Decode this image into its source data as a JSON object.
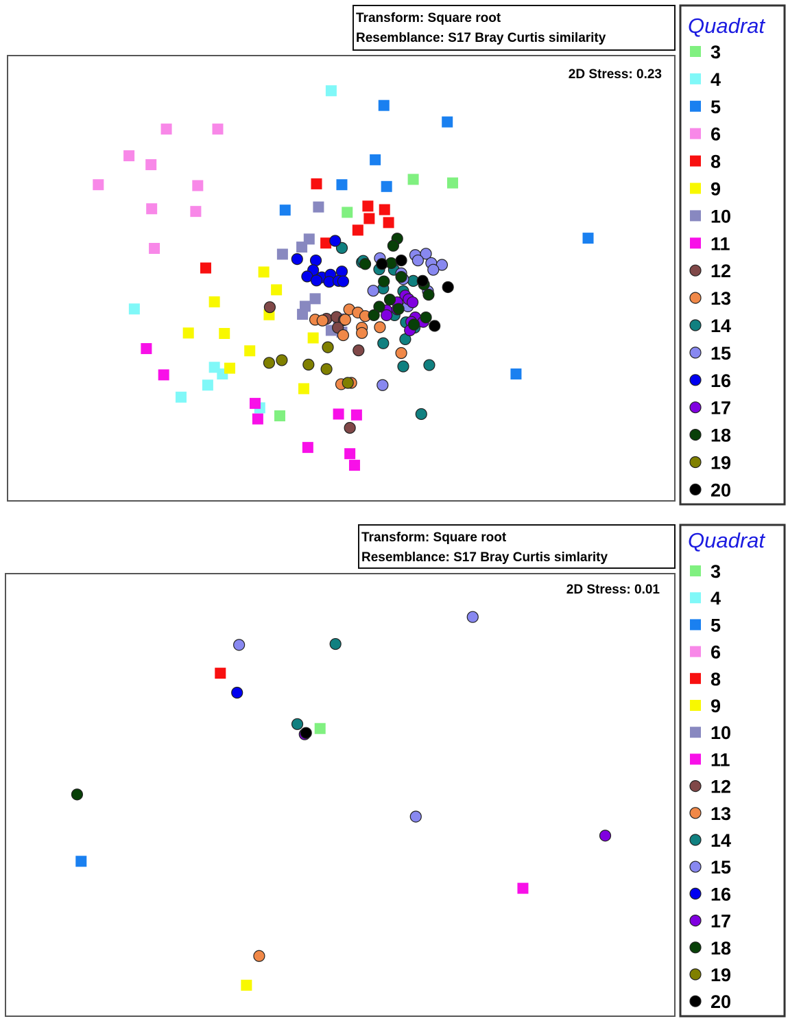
{
  "chart_data": [
    {
      "type": "scatter",
      "title": "",
      "xlabel": "",
      "ylabel": "",
      "info_lines": [
        "Transform: Square root",
        "Resemblance: S17 Bray Curtis similarity"
      ],
      "stress_label": "2D Stress: 0.23",
      "legend_title": "Quadrat",
      "legend": [
        {
          "label": "3",
          "shape": "square",
          "color": "#80f080"
        },
        {
          "label": "4",
          "shape": "square",
          "color": "#80f8f8"
        },
        {
          "label": "5",
          "shape": "square",
          "color": "#1a80f0"
        },
        {
          "label": "6",
          "shape": "square",
          "color": "#f888e8"
        },
        {
          "label": "8",
          "shape": "square",
          "color": "#f81010"
        },
        {
          "label": "9",
          "shape": "square",
          "color": "#f8f800"
        },
        {
          "label": "10",
          "shape": "square",
          "color": "#8888c0"
        },
        {
          "label": "11",
          "shape": "square",
          "color": "#f810e8"
        },
        {
          "label": "12",
          "shape": "circle",
          "color": "#804848"
        },
        {
          "label": "13",
          "shape": "circle",
          "color": "#f08848"
        },
        {
          "label": "14",
          "shape": "circle",
          "color": "#108080"
        },
        {
          "label": "15",
          "shape": "circle",
          "color": "#8888f0"
        },
        {
          "label": "16",
          "shape": "circle",
          "color": "#0000f0"
        },
        {
          "label": "17",
          "shape": "circle",
          "color": "#8000e0"
        },
        {
          "label": "18",
          "shape": "circle",
          "color": "#084008"
        },
        {
          "label": "19",
          "shape": "circle",
          "color": "#808000"
        },
        {
          "label": "20",
          "shape": "circle",
          "color": "#000000"
        }
      ],
      "xlim": [
        0,
        100
      ],
      "ylim": [
        0,
        100
      ],
      "series": [
        {
          "name": "3",
          "points": [
            [
              60.8,
              72.2
            ],
            [
              66.7,
              71.4
            ],
            [
              50.9,
              64.8
            ],
            [
              40.8,
              19.1
            ]
          ]
        },
        {
          "name": "4",
          "points": [
            [
              48.5,
              92.1
            ],
            [
              19.0,
              43.1
            ],
            [
              31.0,
              30.0
            ],
            [
              32.2,
              28.5
            ],
            [
              30.0,
              26.0
            ],
            [
              26.0,
              23.3
            ],
            [
              37.8,
              20.9
            ]
          ]
        },
        {
          "name": "5",
          "points": [
            [
              56.4,
              88.8
            ],
            [
              65.9,
              85.1
            ],
            [
              55.1,
              76.6
            ],
            [
              50.1,
              71.0
            ],
            [
              56.8,
              70.6
            ],
            [
              41.6,
              65.3
            ],
            [
              87.0,
              59.0
            ],
            [
              76.2,
              28.5
            ]
          ]
        },
        {
          "name": "6",
          "points": [
            [
              23.8,
              83.5
            ],
            [
              31.5,
              83.5
            ],
            [
              18.2,
              77.5
            ],
            [
              21.5,
              75.5
            ],
            [
              13.6,
              71.0
            ],
            [
              28.5,
              70.8
            ],
            [
              21.6,
              65.6
            ],
            [
              28.2,
              65.0
            ],
            [
              22.0,
              56.7
            ]
          ]
        },
        {
          "name": "8",
          "points": [
            [
              46.3,
              71.2
            ],
            [
              54.0,
              66.2
            ],
            [
              56.5,
              65.4
            ],
            [
              54.2,
              63.4
            ],
            [
              57.1,
              62.5
            ],
            [
              52.5,
              60.8
            ],
            [
              47.7,
              57.9
            ],
            [
              29.7,
              52.3
            ]
          ]
        },
        {
          "name": "9",
          "points": [
            [
              38.4,
              51.4
            ],
            [
              40.3,
              47.4
            ],
            [
              31.0,
              44.7
            ],
            [
              39.2,
              41.8
            ],
            [
              27.1,
              37.7
            ],
            [
              32.5,
              37.6
            ],
            [
              45.8,
              36.6
            ],
            [
              36.3,
              33.7
            ],
            [
              33.3,
              29.8
            ],
            [
              44.4,
              25.2
            ]
          ]
        },
        {
          "name": "10",
          "points": [
            [
              46.6,
              66.0
            ],
            [
              45.2,
              58.8
            ],
            [
              44.1,
              57.0
            ],
            [
              41.2,
              55.4
            ],
            [
              46.1,
              45.4
            ],
            [
              44.6,
              43.7
            ],
            [
              44.2,
              41.9
            ],
            [
              49.6,
              40.9
            ],
            [
              48.5,
              38.3
            ],
            [
              50.1,
              37.9
            ]
          ]
        },
        {
          "name": "11",
          "points": [
            [
              20.8,
              34.2
            ],
            [
              23.4,
              28.3
            ],
            [
              37.1,
              21.9
            ],
            [
              37.5,
              18.4
            ],
            [
              49.6,
              19.5
            ],
            [
              52.3,
              19.3
            ],
            [
              45.0,
              12.0
            ],
            [
              51.3,
              10.6
            ],
            [
              52.0,
              8.0
            ]
          ]
        },
        {
          "name": "12",
          "points": [
            [
              39.3,
              43.5
            ],
            [
              47.8,
              40.9
            ],
            [
              49.3,
              41.3
            ],
            [
              50.4,
              40.6
            ],
            [
              49.5,
              38.9
            ],
            [
              52.6,
              33.8
            ],
            [
              51.3,
              16.4
            ]
          ]
        },
        {
          "name": "13",
          "points": [
            [
              51.2,
              43.0
            ],
            [
              52.5,
              42.3
            ],
            [
              53.6,
              41.5
            ],
            [
              46.1,
              40.7
            ],
            [
              47.2,
              40.5
            ],
            [
              50.6,
              40.7
            ],
            [
              53.1,
              38.9
            ],
            [
              55.8,
              39.0
            ],
            [
              53.1,
              37.7
            ],
            [
              50.3,
              37.2
            ],
            [
              59.0,
              33.2
            ],
            [
              50.0,
              26.2
            ],
            [
              51.5,
              26.5
            ]
          ]
        },
        {
          "name": "14",
          "points": [
            [
              50.1,
              56.8
            ],
            [
              53.1,
              53.6
            ],
            [
              55.7,
              52.0
            ],
            [
              53.3,
              53.9
            ],
            [
              60.8,
              49.4
            ],
            [
              57.9,
              51.9
            ],
            [
              56.3,
              47.7
            ],
            [
              59.3,
              47.1
            ],
            [
              58.0,
              41.7
            ],
            [
              59.7,
              40.1
            ],
            [
              61.0,
              38.9
            ],
            [
              59.6,
              36.3
            ],
            [
              56.3,
              35.4
            ],
            [
              59.3,
              30.2
            ],
            [
              63.2,
              30.5
            ],
            [
              62.0,
              19.5
            ]
          ]
        },
        {
          "name": "15",
          "points": [
            [
              55.8,
              54.5
            ],
            [
              61.1,
              55.2
            ],
            [
              62.7,
              55.5
            ],
            [
              61.5,
              54.0
            ],
            [
              63.5,
              53.4
            ],
            [
              65.1,
              53.0
            ],
            [
              63.8,
              51.9
            ],
            [
              59.0,
              51.1
            ],
            [
              59.3,
              49.8
            ],
            [
              54.8,
              47.2
            ],
            [
              63.0,
              47.1
            ],
            [
              60.0,
              43.7
            ],
            [
              56.2,
              26.0
            ]
          ]
        },
        {
          "name": "16",
          "points": [
            [
              49.1,
              58.4
            ],
            [
              43.4,
              54.3
            ],
            [
              46.2,
              54.0
            ],
            [
              45.8,
              51.8
            ],
            [
              47.1,
              50.2
            ],
            [
              44.9,
              50.4
            ],
            [
              48.4,
              50.8
            ],
            [
              50.1,
              51.5
            ],
            [
              46.3,
              49.5
            ],
            [
              48.2,
              49.2
            ],
            [
              49.6,
              49.4
            ],
            [
              50.3,
              49.3
            ]
          ]
        },
        {
          "name": "17",
          "points": [
            [
              59.6,
              46.1
            ],
            [
              60.1,
              45.3
            ],
            [
              58.4,
              44.6
            ],
            [
              60.7,
              44.6
            ],
            [
              56.8,
              42.8
            ],
            [
              58.4,
              43.0
            ],
            [
              56.8,
              41.7
            ],
            [
              61.1,
              41.2
            ],
            [
              60.5,
              40.2
            ],
            [
              62.3,
              40.2
            ],
            [
              60.3,
              38.3
            ]
          ]
        },
        {
          "name": "18",
          "points": [
            [
              58.4,
              58.9
            ],
            [
              57.8,
              57.3
            ],
            [
              53.6,
              53.2
            ],
            [
              57.5,
              53.4
            ],
            [
              59.0,
              50.3
            ],
            [
              56.4,
              49.3
            ],
            [
              62.4,
              48.6
            ],
            [
              63.1,
              46.3
            ],
            [
              57.3,
              45.2
            ],
            [
              55.7,
              43.6
            ],
            [
              58.6,
              43.1
            ],
            [
              62.7,
              41.2
            ],
            [
              60.9,
              39.6
            ],
            [
              54.9,
              41.7
            ]
          ]
        },
        {
          "name": "19",
          "points": [
            [
              39.2,
              31.0
            ],
            [
              41.1,
              31.6
            ],
            [
              45.1,
              30.6
            ],
            [
              48.0,
              34.5
            ],
            [
              47.8,
              29.6
            ],
            [
              51.0,
              26.5
            ]
          ]
        },
        {
          "name": "20",
          "points": [
            [
              56.1,
              53.2
            ],
            [
              59.0,
              54.0
            ],
            [
              62.2,
              49.4
            ],
            [
              66.0,
              48.0
            ],
            [
              64.0,
              39.3
            ]
          ]
        }
      ]
    },
    {
      "type": "scatter",
      "title": "",
      "xlabel": "",
      "ylabel": "",
      "info_lines": [
        "Transform: Square root",
        "Resemblance: S17 Bray Curtis simlarity"
      ],
      "stress_label": "2D Stress: 0.01",
      "legend_title": "Quadrat",
      "legend": [
        {
          "label": "3",
          "shape": "square",
          "color": "#80f080"
        },
        {
          "label": "4",
          "shape": "square",
          "color": "#80f8f8"
        },
        {
          "label": "5",
          "shape": "square",
          "color": "#1a80f0"
        },
        {
          "label": "6",
          "shape": "square",
          "color": "#f888e8"
        },
        {
          "label": "8",
          "shape": "square",
          "color": "#f81010"
        },
        {
          "label": "9",
          "shape": "square",
          "color": "#f8f800"
        },
        {
          "label": "10",
          "shape": "square",
          "color": "#8888c0"
        },
        {
          "label": "11",
          "shape": "square",
          "color": "#f810e8"
        },
        {
          "label": "12",
          "shape": "circle",
          "color": "#804848"
        },
        {
          "label": "13",
          "shape": "circle",
          "color": "#f08848"
        },
        {
          "label": "14",
          "shape": "circle",
          "color": "#108080"
        },
        {
          "label": "15",
          "shape": "circle",
          "color": "#8888f0"
        },
        {
          "label": "16",
          "shape": "circle",
          "color": "#0000f0"
        },
        {
          "label": "17",
          "shape": "circle",
          "color": "#8000e0"
        },
        {
          "label": "18",
          "shape": "circle",
          "color": "#084008"
        },
        {
          "label": "19",
          "shape": "circle",
          "color": "#808000"
        },
        {
          "label": "20",
          "shape": "circle",
          "color": "#000000"
        }
      ],
      "xlim": [
        0,
        100
      ],
      "ylim": [
        0,
        100
      ],
      "series": [
        {
          "name": "3",
          "points": [
            [
              47.0,
              65.0
            ]
          ]
        },
        {
          "name": "5",
          "points": [
            [
              11.3,
              35.0
            ]
          ]
        },
        {
          "name": "8",
          "points": [
            [
              32.1,
              77.5
            ]
          ]
        },
        {
          "name": "9",
          "points": [
            [
              36.0,
              7.0
            ]
          ]
        },
        {
          "name": "11",
          "points": [
            [
              77.3,
              28.9
            ]
          ]
        },
        {
          "name": "13",
          "points": [
            [
              37.9,
              13.6
            ]
          ]
        },
        {
          "name": "14",
          "points": [
            [
              49.3,
              84.1
            ],
            [
              43.6,
              66.0
            ]
          ]
        },
        {
          "name": "15",
          "points": [
            [
              69.8,
              90.2
            ],
            [
              34.9,
              83.9
            ],
            [
              61.3,
              45.1
            ]
          ]
        },
        {
          "name": "16",
          "points": [
            [
              34.6,
              73.1
            ]
          ]
        },
        {
          "name": "17",
          "points": [
            [
              89.6,
              40.8
            ],
            [
              44.7,
              63.7
            ]
          ]
        },
        {
          "name": "18",
          "points": [
            [
              10.7,
              50.1
            ]
          ]
        },
        {
          "name": "20",
          "points": [
            [
              44.9,
              64.0
            ]
          ]
        }
      ]
    }
  ]
}
